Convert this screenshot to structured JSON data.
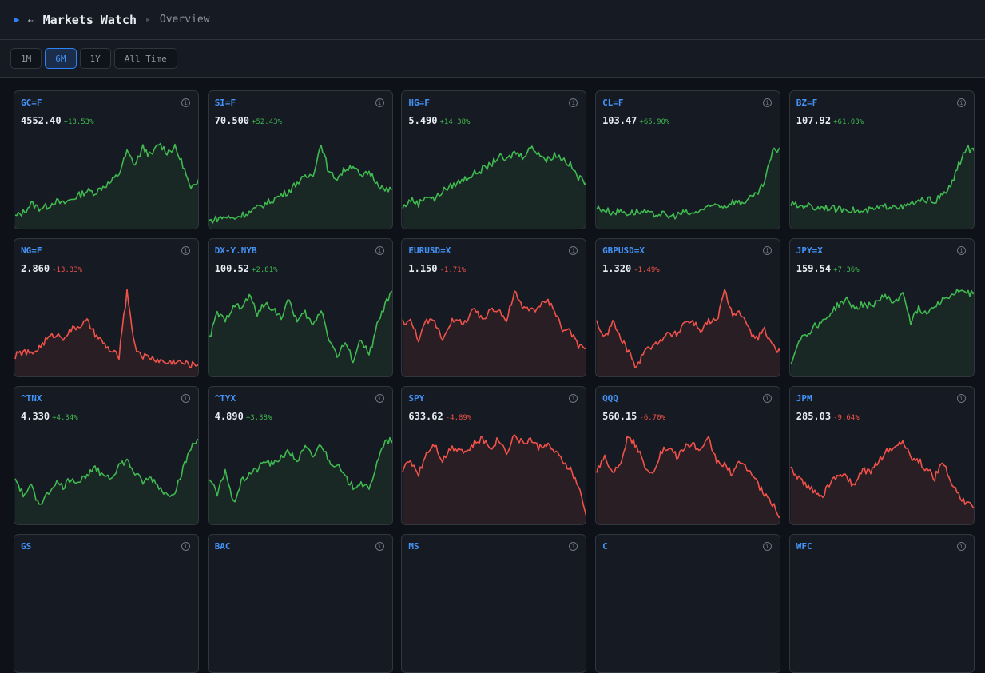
{
  "header": {
    "title": "Markets Watch",
    "breadcrumb": "Overview"
  },
  "toolbar": {
    "ranges": [
      {
        "label": "1M",
        "active": false
      },
      {
        "label": "6M",
        "active": true
      },
      {
        "label": "1Y",
        "active": false
      },
      {
        "label": "All Time",
        "active": false
      }
    ]
  },
  "colors": {
    "up": "#3fb950",
    "down": "#f0524a",
    "accent": "#4493f8"
  },
  "cards": [
    {
      "ticker": "GC=F",
      "price": "4552.40",
      "change": "+18.53%",
      "dir": "up",
      "series": [
        10,
        15,
        25,
        20,
        22,
        28,
        25,
        30,
        35,
        40,
        38,
        45,
        50,
        60,
        85,
        70,
        90,
        80,
        95,
        85,
        90,
        70,
        40,
        55
      ]
    },
    {
      "ticker": "SI=F",
      "price": "70.500",
      "change": "+52.43%",
      "dir": "up",
      "series": [
        5,
        8,
        10,
        8,
        12,
        15,
        20,
        25,
        30,
        35,
        40,
        50,
        55,
        60,
        95,
        60,
        55,
        65,
        70,
        55,
        62,
        50,
        40,
        42
      ]
    },
    {
      "ticker": "HG=F",
      "price": "5.490",
      "change": "+14.38%",
      "dir": "up",
      "series": [
        20,
        30,
        25,
        35,
        30,
        40,
        45,
        50,
        55,
        60,
        65,
        70,
        80,
        75,
        85,
        80,
        90,
        85,
        75,
        82,
        78,
        70,
        55,
        50
      ]
    },
    {
      "ticker": "CL=F",
      "price": "103.47",
      "change": "+65.90%",
      "dir": "up",
      "series": [
        20,
        18,
        15,
        17,
        14,
        16,
        15,
        12,
        14,
        10,
        12,
        15,
        13,
        18,
        20,
        25,
        22,
        28,
        26,
        30,
        35,
        50,
        85,
        90
      ]
    },
    {
      "ticker": "BZ=F",
      "price": "107.92",
      "change": "+61.03%",
      "dir": "up",
      "series": [
        25,
        22,
        24,
        20,
        22,
        20,
        18,
        20,
        17,
        15,
        18,
        20,
        22,
        24,
        20,
        25,
        27,
        30,
        28,
        35,
        45,
        70,
        90,
        85
      ]
    },
    {
      "ticker": "NG=F",
      "price": "2.860",
      "change": "-13.33%",
      "dir": "down",
      "series": [
        20,
        25,
        22,
        30,
        40,
        45,
        42,
        50,
        55,
        60,
        45,
        35,
        25,
        20,
        95,
        30,
        20,
        18,
        15,
        12,
        14,
        12,
        10,
        10
      ]
    },
    {
      "ticker": "DX-Y.NYB",
      "price": "100.52",
      "change": "+2.81%",
      "dir": "up",
      "series": [
        40,
        70,
        60,
        80,
        75,
        90,
        70,
        80,
        75,
        65,
        85,
        60,
        70,
        55,
        75,
        40,
        20,
        35,
        15,
        40,
        20,
        55,
        80,
        95
      ]
    },
    {
      "ticker": "EURUSD=X",
      "price": "1.150",
      "change": "-1.71%",
      "dir": "down",
      "series": [
        60,
        60,
        40,
        60,
        60,
        40,
        60,
        60,
        60,
        75,
        60,
        75,
        75,
        60,
        95,
        75,
        75,
        75,
        85,
        75,
        50,
        50,
        30,
        30
      ]
    },
    {
      "ticker": "GBPUSD=X",
      "price": "1.320",
      "change": "-1.49%",
      "dir": "down",
      "series": [
        60,
        40,
        60,
        40,
        25,
        5,
        30,
        30,
        40,
        45,
        45,
        60,
        60,
        50,
        60,
        60,
        95,
        70,
        70,
        50,
        40,
        50,
        30,
        25
      ]
    },
    {
      "ticker": "JPY=X",
      "price": "159.54",
      "change": "+7.36%",
      "dir": "up",
      "series": [
        10,
        40,
        45,
        55,
        60,
        70,
        80,
        85,
        75,
        80,
        78,
        85,
        90,
        80,
        95,
        60,
        75,
        70,
        80,
        85,
        90,
        95,
        92,
        95
      ]
    },
    {
      "ticker": "^TNX",
      "price": "4.330",
      "change": "+4.34%",
      "dir": "up",
      "series": [
        50,
        30,
        40,
        20,
        30,
        45,
        40,
        50,
        45,
        55,
        60,
        55,
        50,
        65,
        70,
        55,
        45,
        50,
        40,
        30,
        35,
        60,
        85,
        95
      ]
    },
    {
      "ticker": "^TYX",
      "price": "4.890",
      "change": "+3.38%",
      "dir": "up",
      "series": [
        50,
        30,
        60,
        20,
        45,
        55,
        60,
        70,
        65,
        75,
        80,
        70,
        85,
        75,
        90,
        70,
        65,
        50,
        40,
        45,
        35,
        70,
        90,
        95
      ]
    },
    {
      "ticker": "SPY",
      "price": "633.62",
      "change": "-4.89%",
      "dir": "down",
      "series": [
        60,
        70,
        55,
        80,
        90,
        70,
        85,
        85,
        80,
        90,
        95,
        85,
        95,
        80,
        100,
        90,
        95,
        85,
        90,
        80,
        70,
        60,
        40,
        5
      ]
    },
    {
      "ticker": "QQQ",
      "price": "560.15",
      "change": "-6.70%",
      "dir": "down",
      "series": [
        60,
        75,
        55,
        70,
        100,
        85,
        65,
        55,
        80,
        85,
        75,
        85,
        90,
        80,
        95,
        70,
        65,
        55,
        70,
        60,
        45,
        30,
        20,
        5
      ]
    },
    {
      "ticker": "JPM",
      "price": "285.03",
      "change": "-9.64%",
      "dir": "down",
      "series": [
        60,
        50,
        40,
        35,
        30,
        45,
        55,
        50,
        40,
        60,
        55,
        70,
        80,
        85,
        95,
        75,
        70,
        60,
        50,
        70,
        45,
        30,
        20,
        15
      ]
    },
    {
      "ticker": "GS"
    },
    {
      "ticker": "BAC"
    },
    {
      "ticker": "MS"
    },
    {
      "ticker": "C"
    },
    {
      "ticker": "WFC"
    }
  ]
}
